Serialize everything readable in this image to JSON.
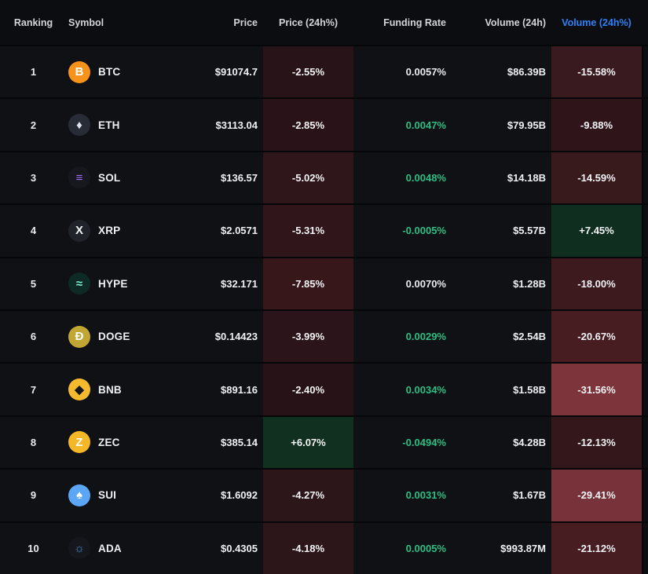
{
  "colors": {
    "background": "#0a0b0d",
    "row_background": "#101114",
    "separator": "#060709",
    "header_text": "#d2d4d8",
    "body_text": "#eef0f3",
    "accent_blue": "#2e81f7",
    "funding_green": "#2ebd85",
    "funding_white": "#eaecef"
  },
  "header": {
    "columns": [
      {
        "id": "ranking",
        "label": "Ranking"
      },
      {
        "id": "symbol",
        "label": "Symbol"
      },
      {
        "id": "price",
        "label": "Price"
      },
      {
        "id": "price_change",
        "label": "Price (24h%)"
      },
      {
        "id": "funding_rate",
        "label": "Funding Rate"
      },
      {
        "id": "volume",
        "label": "Volume (24h)"
      },
      {
        "id": "volume_change",
        "label": "Volume (24h%)",
        "color": "#2e81f7"
      }
    ]
  },
  "table": {
    "rows": [
      {
        "ranking": "1",
        "symbol": "BTC",
        "icon": {
          "name": "btc-icon",
          "glyph": "B",
          "bg": "#f7931a",
          "color": "#ffffff"
        },
        "price": "$91074.7",
        "price_change": "-2.55%",
        "price_change_bg": "#281318",
        "funding_rate": "0.0057%",
        "funding_color": "#eaecef",
        "volume": "$86.39B",
        "volume_change": "-15.58%",
        "volume_change_bg": "#391a1e"
      },
      {
        "ranking": "2",
        "symbol": "ETH",
        "icon": {
          "name": "eth-icon",
          "glyph": "♦",
          "bg": "#272c36",
          "color": "#dfe4ee"
        },
        "price": "$3113.04",
        "price_change": "-2.85%",
        "price_change_bg": "#291318",
        "funding_rate": "0.0047%",
        "funding_color": "#2ebd85",
        "volume": "$79.95B",
        "volume_change": "-9.88%",
        "volume_change_bg": "#2f151a"
      },
      {
        "ranking": "3",
        "symbol": "SOL",
        "icon": {
          "name": "sol-icon",
          "glyph": "≡",
          "bg": "#17181d",
          "color": "#9b6cff"
        },
        "price": "$136.57",
        "price_change": "-5.02%",
        "price_change_bg": "#2f161a",
        "funding_rate": "0.0048%",
        "funding_color": "#2ebd85",
        "volume": "$14.18B",
        "volume_change": "-14.59%",
        "volume_change_bg": "#381a1d"
      },
      {
        "ranking": "4",
        "symbol": "XRP",
        "icon": {
          "name": "xrp-icon",
          "glyph": "X",
          "bg": "#20242a",
          "color": "#f2f4f6"
        },
        "price": "$2.0571",
        "price_change": "-5.31%",
        "price_change_bg": "#30161a",
        "funding_rate": "-0.0005%",
        "funding_color": "#2ebd85",
        "volume": "$5.57B",
        "volume_change": "+7.45%",
        "volume_change_bg": "#0f2e20"
      },
      {
        "ranking": "5",
        "symbol": "HYPE",
        "icon": {
          "name": "hype-icon",
          "glyph": "≈",
          "bg": "#0d2a25",
          "color": "#7ff0d3"
        },
        "price": "$32.171",
        "price_change": "-7.85%",
        "price_change_bg": "#371719",
        "funding_rate": "0.0070%",
        "funding_color": "#eaecef",
        "volume": "$1.28B",
        "volume_change": "-18.00%",
        "volume_change_bg": "#3d1a1e"
      },
      {
        "ranking": "6",
        "symbol": "DOGE",
        "icon": {
          "name": "doge-icon",
          "glyph": "Ð",
          "bg": "#c2a633",
          "color": "#ffffff"
        },
        "price": "$0.14423",
        "price_change": "-3.99%",
        "price_change_bg": "#2c151a",
        "funding_rate": "0.0029%",
        "funding_color": "#2ebd85",
        "volume": "$2.54B",
        "volume_change": "-20.67%",
        "volume_change_bg": "#471d22"
      },
      {
        "ranking": "7",
        "symbol": "BNB",
        "icon": {
          "name": "bnb-icon",
          "glyph": "◆",
          "bg": "#f3ba2f",
          "color": "#14151a"
        },
        "price": "$891.16",
        "price_change": "-2.40%",
        "price_change_bg": "#271317",
        "funding_rate": "0.0034%",
        "funding_color": "#2ebd85",
        "volume": "$1.58B",
        "volume_change": "-31.56%",
        "volume_change_bg": "#7e343b"
      },
      {
        "ranking": "8",
        "symbol": "ZEC",
        "icon": {
          "name": "zec-icon",
          "glyph": "Z",
          "bg": "#f4b728",
          "color": "#ffffff"
        },
        "price": "$385.14",
        "price_change": "+6.07%",
        "price_change_bg": "#11301f",
        "funding_rate": "-0.0494%",
        "funding_color": "#2ebd85",
        "volume": "$4.28B",
        "volume_change": "-12.13%",
        "volume_change_bg": "#33171b"
      },
      {
        "ranking": "9",
        "symbol": "SUI",
        "icon": {
          "name": "sui-icon",
          "glyph": "♠",
          "bg": "#5ba7f5",
          "color": "#ffffff"
        },
        "price": "$1.6092",
        "price_change": "-4.27%",
        "price_change_bg": "#2d161a",
        "funding_rate": "0.0031%",
        "funding_color": "#2ebd85",
        "volume": "$1.67B",
        "volume_change": "-29.41%",
        "volume_change_bg": "#77323a"
      },
      {
        "ranking": "10",
        "symbol": "ADA",
        "icon": {
          "name": "ada-icon",
          "glyph": "☼",
          "bg": "#15171c",
          "color": "#4b8fd4"
        },
        "price": "$0.4305",
        "price_change": "-4.18%",
        "price_change_bg": "#2d161a",
        "funding_rate": "0.0005%",
        "funding_color": "#2ebd85",
        "volume": "$993.87M",
        "volume_change": "-21.12%",
        "volume_change_bg": "#481d22"
      }
    ]
  }
}
